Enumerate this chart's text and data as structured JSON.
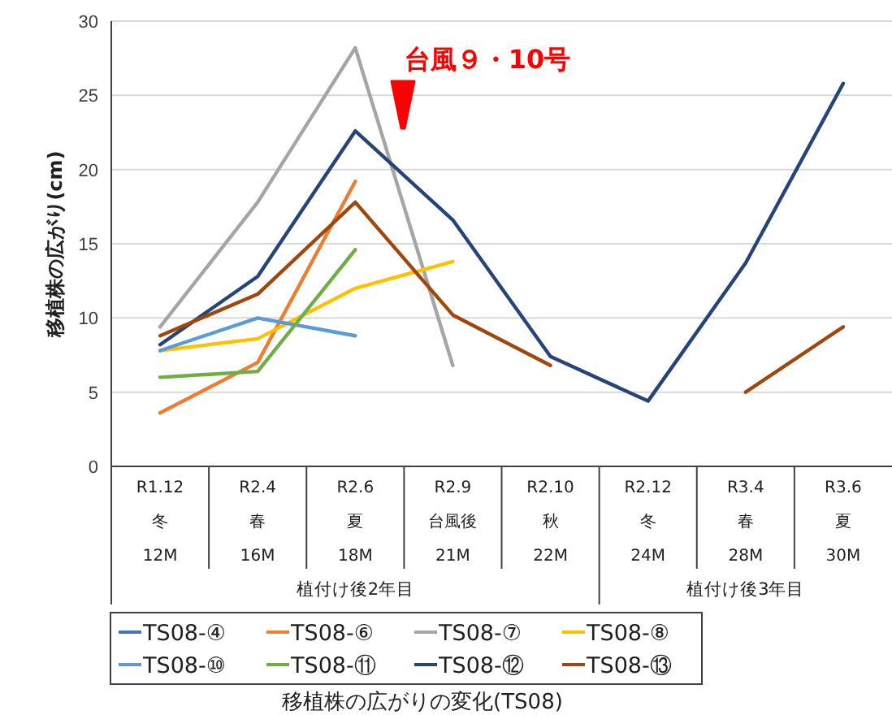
{
  "chart_data": {
    "type": "line",
    "ylabel": "移植株の広がり(cm)",
    "categories": [
      "R1.12\n冬\n12M",
      "R2.4\n春\n16M",
      "R2.6\n夏\n18M",
      "R2.9\n台風後\n21M",
      "R2.10\n秋\n22M",
      "R2.12\n冬\n24M",
      "R3.4\n春\n28M",
      "R3.6\n夏\n30M"
    ],
    "series": [
      {
        "name": "TS08-④",
        "color": "#4472c4",
        "values": [
          null,
          null,
          null,
          null,
          null,
          null,
          null,
          null
        ]
      },
      {
        "name": "TS08-⑥",
        "color": "#ed7d31",
        "values": [
          3.6,
          7.0,
          19.2,
          null,
          null,
          null,
          null,
          null
        ]
      },
      {
        "name": "TS08-⑦",
        "color": "#a5a5a5",
        "values": [
          9.4,
          17.8,
          28.2,
          6.8,
          null,
          null,
          null,
          null
        ]
      },
      {
        "name": "TS08-⑧",
        "color": "#ffc000",
        "values": [
          7.8,
          8.6,
          12.0,
          13.8,
          null,
          null,
          null,
          null
        ]
      },
      {
        "name": "TS08-⑩",
        "color": "#5b9bd5",
        "values": [
          7.8,
          10.0,
          8.8,
          null,
          null,
          null,
          null,
          null
        ]
      },
      {
        "name": "TS08-⑪",
        "color": "#70ad47",
        "values": [
          6.0,
          6.4,
          14.6,
          null,
          null,
          null,
          null,
          null
        ]
      },
      {
        "name": "TS08-⑫",
        "color": "#264478",
        "values": [
          8.2,
          12.8,
          22.6,
          16.6,
          7.4,
          4.4,
          13.7,
          25.8
        ]
      },
      {
        "name": "TS08-⑬",
        "color": "#9e480e",
        "values": [
          8.8,
          11.6,
          17.8,
          10.2,
          6.8,
          null,
          5.0,
          9.4
        ]
      }
    ],
    "ylim": [
      0,
      30
    ],
    "yticks": [
      0,
      5,
      10,
      15,
      20,
      25,
      30
    ],
    "grid": "y",
    "legend": "bottom",
    "line_style": "solid",
    "marker": "none",
    "annotations": [
      "台風９・10号",
      "植付け後2年目",
      "植付け後3年目",
      "移植株の広がりの変化(TS08)"
    ]
  }
}
